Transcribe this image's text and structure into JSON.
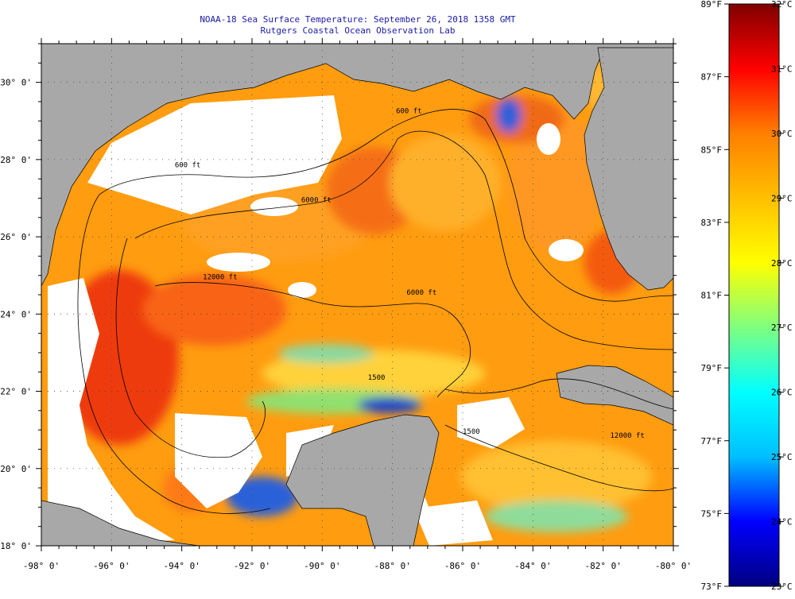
{
  "title": {
    "line1": "NOAA-18 Sea Surface Temperature:  September 26, 2018 1358 GMT",
    "line2": "Rutgers Coastal Ocean Observation Lab"
  },
  "map": {
    "lon_range": [
      -98,
      -80
    ],
    "lat_range": [
      18,
      31
    ],
    "lon_ticks": [
      -98,
      -96,
      -94,
      -92,
      -90,
      -88,
      -86,
      -84,
      -82,
      -80
    ],
    "lon_tick_labels": [
      "-98° 0'",
      "-96° 0'",
      "-94° 0'",
      "-92° 0'",
      "-90° 0'",
      "-88° 0'",
      "-86° 0'",
      "-84° 0'",
      "-82° 0'",
      "-80° 0'"
    ],
    "lat_ticks": [
      18,
      20,
      22,
      24,
      26,
      28,
      30
    ],
    "lat_tick_labels": [
      "18° 0'",
      "20° 0'",
      "22° 0'",
      "24° 0'",
      "26° 0'",
      "28° 0'",
      "30° 0'"
    ],
    "grid": true,
    "land_color": "#a8a8a8",
    "cloud_color": "#ffffff",
    "contour_labels": [
      {
        "text": "600 ft",
        "lon": -94.2,
        "lat": 27.8
      },
      {
        "text": "600 ft",
        "lon": -87.9,
        "lat": 29.2
      },
      {
        "text": "6000 ft",
        "lon": -90.6,
        "lat": 26.9
      },
      {
        "text": "12000 ft",
        "lon": -93.4,
        "lat": 24.9
      },
      {
        "text": "6000 ft",
        "lon": -87.6,
        "lat": 24.5
      },
      {
        "text": "1500",
        "lon": -88.7,
        "lat": 22.3
      },
      {
        "text": "1500",
        "lon": -86.0,
        "lat": 20.9
      },
      {
        "text": "12000 ft",
        "lon": -81.8,
        "lat": 20.8
      }
    ]
  },
  "colorbar": {
    "celsius_range": [
      23,
      32
    ],
    "fahrenheit_range": [
      73,
      89
    ],
    "celsius_labels": [
      "32°C",
      "31°C",
      "30°C",
      "29°C",
      "28°C",
      "27°C",
      "26°C",
      "25°C",
      "24°C",
      "23°C"
    ],
    "fahrenheit_labels": [
      "89°F",
      "87°F",
      "85°F",
      "83°F",
      "81°F",
      "79°F",
      "77°F",
      "75°F",
      "73°F"
    ],
    "colors": [
      "#00007f",
      "#0000ff",
      "#00bfff",
      "#00ffff",
      "#7fff7f",
      "#ffff00",
      "#ffbf00",
      "#ff7f00",
      "#ff0000",
      "#7f0000"
    ]
  }
}
